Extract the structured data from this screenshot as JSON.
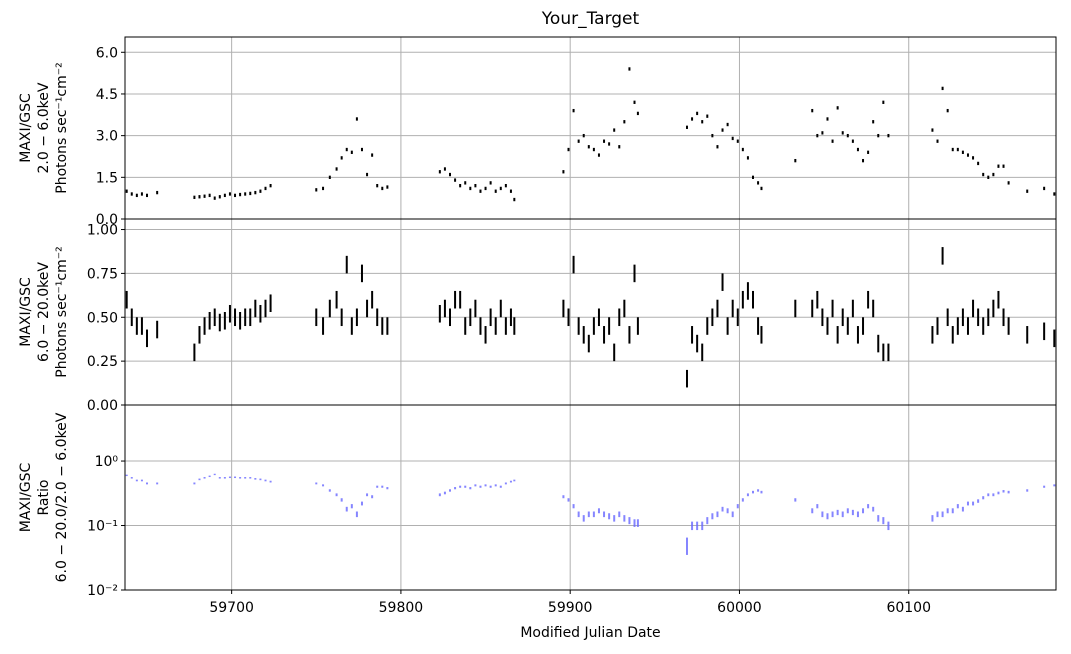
{
  "chart_data": [
    {
      "type": "errorbar",
      "title": "Your_Target",
      "ylabel": [
        "MAXI/GSC",
        "2.0 − 6.0keV",
        "Photons sec⁻¹cm⁻²"
      ],
      "ylim": [
        0,
        6.55
      ],
      "yticks": [
        {
          "value": 0,
          "label": "0.0"
        },
        1.5,
        {
          "value": 3,
          "label": "3.0"
        },
        4.5,
        {
          "value": 6,
          "label": "6.0"
        }
      ],
      "grid": true,
      "series": [
        {
          "color": "#000000",
          "error": 0.06,
          "values": [
            1.0,
            0.9,
            0.85,
            0.9,
            0.85,
            0.95,
            0.78,
            0.8,
            0.82,
            0.85,
            0.75,
            0.8,
            0.85,
            0.9,
            0.85,
            0.88,
            0.9,
            0.92,
            0.95,
            1.0,
            1.1,
            1.2,
            1.05,
            1.1,
            1.5,
            1.8,
            2.2,
            2.5,
            2.4,
            3.6,
            2.5,
            1.6,
            2.3,
            1.2,
            1.1,
            1.15,
            1.7,
            1.8,
            1.6,
            1.4,
            1.2,
            1.3,
            1.1,
            1.2,
            1.0,
            1.1,
            1.3,
            1.0,
            1.1,
            1.2,
            1.0,
            0.7,
            1.7,
            2.5,
            3.9,
            2.8,
            3.0,
            2.6,
            2.5,
            2.3,
            2.8,
            2.7,
            3.2,
            2.6,
            3.5,
            5.4,
            4.2,
            3.8,
            3.3,
            3.6,
            3.8,
            3.5,
            3.7,
            3.0,
            2.6,
            3.2,
            3.4,
            2.9,
            2.8,
            2.5,
            2.2,
            1.5,
            1.3,
            1.1,
            2.1,
            3.9,
            3.0,
            3.1,
            3.6,
            2.8,
            4.0,
            3.1,
            3.0,
            2.8,
            2.5,
            2.1,
            2.4,
            3.5,
            3.0,
            4.2,
            3.0,
            3.2,
            2.8,
            4.7,
            3.9,
            2.5,
            2.5,
            2.4,
            2.3,
            2.2,
            2.0,
            1.6,
            1.5,
            1.6,
            1.9,
            1.9,
            1.3,
            1.0,
            1.1,
            0.9
          ]
        }
      ]
    },
    {
      "type": "errorbar",
      "ylabel": [
        "MAXI/GSC",
        "6.0 − 20.0keV",
        "Photons sec⁻¹cm⁻²"
      ],
      "ylim": [
        0,
        1.06
      ],
      "yticks": [
        {
          "value": 0,
          "label": "0.00"
        },
        0.25,
        {
          "value": 0.5,
          "label": "0.50"
        },
        0.75,
        {
          "value": 1,
          "label": "1.00"
        }
      ],
      "grid": true,
      "series": [
        {
          "color": "#000000",
          "error": 0.05,
          "values": [
            0.6,
            0.5,
            0.45,
            0.45,
            0.38,
            0.43,
            0.3,
            0.4,
            0.45,
            0.48,
            0.5,
            0.47,
            0.48,
            0.52,
            0.5,
            0.48,
            0.5,
            0.5,
            0.55,
            0.52,
            0.55,
            0.58,
            0.5,
            0.45,
            0.55,
            0.6,
            0.5,
            0.8,
            0.45,
            0.5,
            0.75,
            0.55,
            0.6,
            0.5,
            0.45,
            0.45,
            0.52,
            0.55,
            0.5,
            0.6,
            0.6,
            0.45,
            0.5,
            0.55,
            0.45,
            0.4,
            0.5,
            0.45,
            0.55,
            0.45,
            0.5,
            0.45,
            0.55,
            0.5,
            0.8,
            0.45,
            0.4,
            0.35,
            0.45,
            0.5,
            0.4,
            0.45,
            0.3,
            0.5,
            0.55,
            0.4,
            0.75,
            0.45,
            0.15,
            0.4,
            0.35,
            0.3,
            0.45,
            0.5,
            0.55,
            0.7,
            0.45,
            0.55,
            0.5,
            0.6,
            0.65,
            0.6,
            0.45,
            0.4,
            0.55,
            0.55,
            0.6,
            0.5,
            0.45,
            0.55,
            0.4,
            0.5,
            0.45,
            0.55,
            0.4,
            0.45,
            0.6,
            0.55,
            0.35,
            0.3,
            0.3,
            0.4,
            0.45,
            0.85,
            0.5,
            0.4,
            0.45,
            0.5,
            0.45,
            0.55,
            0.5,
            0.45,
            0.5,
            0.55,
            0.6,
            0.5,
            0.45,
            0.4,
            0.42,
            0.38
          ]
        }
      ]
    },
    {
      "type": "errorbar",
      "ylabel": [
        "MAXI/GSC",
        "Ratio",
        "6.0 − 20.0/2.0 − 6.0keV"
      ],
      "xlabel": "Modified Julian Date",
      "log_y": true,
      "ylim": [
        0.01,
        7.4
      ],
      "yticks": [
        {
          "value": 0.01,
          "label": "10⁻²"
        },
        {
          "value": 0.1,
          "label": "10⁻¹"
        },
        {
          "value": 1,
          "label": "10⁰"
        }
      ],
      "xlim": [
        59637,
        60187
      ],
      "xticks": [
        59700,
        59800,
        59900,
        60000,
        60100
      ],
      "grid": true,
      "x": [
        59638,
        59641,
        59644,
        59647,
        59650,
        59656,
        59678,
        59681,
        59684,
        59687,
        59690,
        59693,
        59696,
        59699,
        59702,
        59705,
        59708,
        59711,
        59714,
        59717,
        59720,
        59723,
        59750,
        59754,
        59758,
        59762,
        59765,
        59768,
        59771,
        59774,
        59777,
        59780,
        59783,
        59786,
        59789,
        59792,
        59823,
        59826,
        59829,
        59832,
        59835,
        59838,
        59841,
        59844,
        59847,
        59850,
        59853,
        59856,
        59859,
        59862,
        59865,
        59867,
        59896,
        59899,
        59902,
        59905,
        59908,
        59911,
        59914,
        59917,
        59920,
        59923,
        59926,
        59929,
        59932,
        59935,
        59938,
        59940,
        59969,
        59972,
        59975,
        59978,
        59981,
        59984,
        59987,
        59990,
        59993,
        59996,
        59999,
        60002,
        60005,
        60008,
        60011,
        60013,
        60033,
        60043,
        60046,
        60049,
        60052,
        60055,
        60058,
        60061,
        60064,
        60067,
        60070,
        60073,
        60076,
        60079,
        60082,
        60085,
        60088,
        60114,
        60117,
        60120,
        60123,
        60126,
        60129,
        60132,
        60135,
        60138,
        60141,
        60144,
        60147,
        60150,
        60153,
        60156,
        60159,
        60170,
        60180,
        60186
      ],
      "series": [
        {
          "color": "#6666ff",
          "error": 0.015,
          "values": [
            0.6,
            0.55,
            0.5,
            0.5,
            0.45,
            0.45,
            0.45,
            0.52,
            0.55,
            0.58,
            0.62,
            0.55,
            0.55,
            0.56,
            0.56,
            0.55,
            0.55,
            0.55,
            0.53,
            0.52,
            0.5,
            0.48,
            0.45,
            0.42,
            0.35,
            0.3,
            0.25,
            0.18,
            0.2,
            0.15,
            0.22,
            0.3,
            0.28,
            0.4,
            0.4,
            0.38,
            0.3,
            0.32,
            0.35,
            0.38,
            0.4,
            0.4,
            0.38,
            0.42,
            0.4,
            0.42,
            0.4,
            0.42,
            0.4,
            0.45,
            0.48,
            0.5,
            0.28,
            0.25,
            0.2,
            0.15,
            0.13,
            0.15,
            0.15,
            0.17,
            0.15,
            0.14,
            0.13,
            0.15,
            0.13,
            0.12,
            0.11,
            0.11,
            0.05,
            0.1,
            0.1,
            0.1,
            0.12,
            0.14,
            0.15,
            0.18,
            0.17,
            0.15,
            0.2,
            0.25,
            0.3,
            0.33,
            0.35,
            0.33,
            0.25,
            0.17,
            0.2,
            0.15,
            0.14,
            0.15,
            0.16,
            0.15,
            0.17,
            0.16,
            0.15,
            0.17,
            0.2,
            0.18,
            0.13,
            0.12,
            0.1,
            0.13,
            0.15,
            0.15,
            0.17,
            0.17,
            0.2,
            0.18,
            0.22,
            0.22,
            0.24,
            0.27,
            0.3,
            0.3,
            0.32,
            0.34,
            0.33,
            0.35,
            0.4,
            0.42
          ]
        }
      ]
    }
  ]
}
